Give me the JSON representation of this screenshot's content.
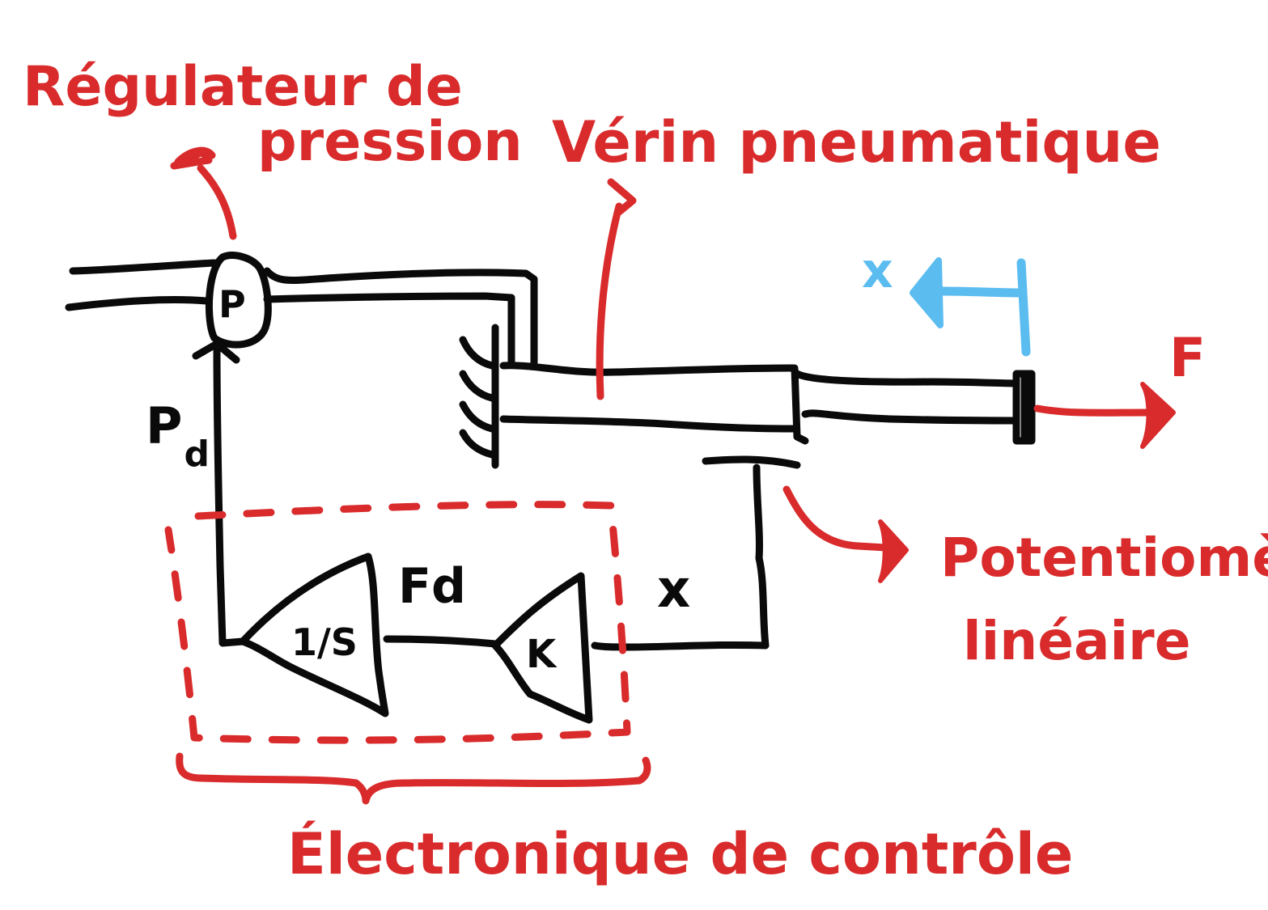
{
  "colors": {
    "ink": "#0a0a0a",
    "annotation": "#d92b2b",
    "displacement": "#5bbcf0",
    "background": "#ffffff"
  },
  "labels": {
    "pressure_regulator": [
      "Régulateur de",
      "pression"
    ],
    "pneumatic_cylinder": "Vérin pneumatique",
    "linear_potentiometer": [
      "Potentiomètre",
      "linéaire"
    ],
    "control_electronics": "Électronique de contrôle",
    "regulator_symbol": "P",
    "desired_pressure": "P",
    "desired_pressure_sub": "d",
    "desired_force": "Fd",
    "integrator_block": "1/S",
    "gain_block": "K",
    "position_signal": "x",
    "displacement": "x",
    "force_output": "F"
  }
}
